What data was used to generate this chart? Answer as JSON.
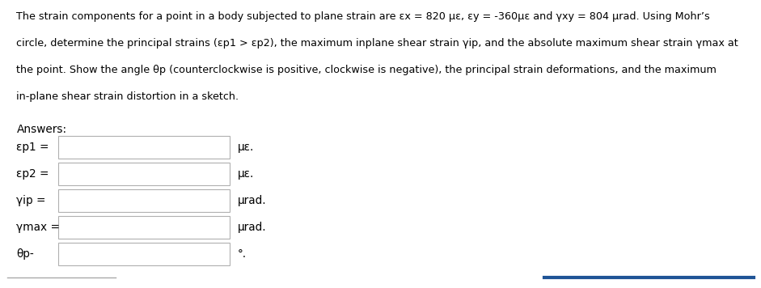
{
  "title_lines": [
    "The strain components for a point in a body subjected to plane strain are εx = 820 με, εy = -360με and γxy = 804 μrad. Using Mohr’s",
    "circle, determine the principal strains (εp1 > εp2), the maximum inplane shear strain γip, and the absolute maximum shear strain γmax at",
    "the point. Show the angle θp (counterclockwise is positive, clockwise is negative), the principal strain deformations, and the maximum",
    "in-plane shear strain distortion in a sketch."
  ],
  "answers_label": "Answers:",
  "rows": [
    {
      "label": "εp1 =",
      "unit": "με."
    },
    {
      "label": "εp2 =",
      "unit": "με."
    },
    {
      "label": "γip =",
      "unit": "μrad."
    },
    {
      "label": "γmax =",
      "unit": "μrad."
    },
    {
      "label": "θp-",
      "unit": "°."
    }
  ],
  "bg_color": "#ffffff",
  "text_color": "#000000",
  "box_color": "#ffffff",
  "box_edge_color": "#b0b0b0",
  "bottom_line_color": "#1f5496",
  "bottom_gray_color": "#aaaaaa",
  "font_size_body": 9.2,
  "font_size_answers": 9.8,
  "font_size_rows": 9.8
}
